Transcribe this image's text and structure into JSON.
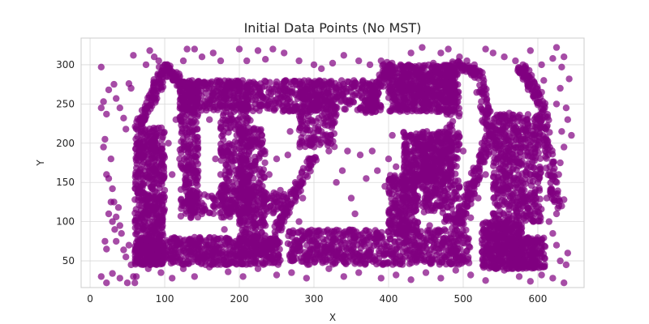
{
  "chart_data": {
    "type": "scatter",
    "title": "Initial Data Points (No MST)",
    "xlabel": "X",
    "ylabel": "Y",
    "xlim": [
      -12,
      662
    ],
    "ylim": [
      16,
      334
    ],
    "xticks": [
      0,
      100,
      200,
      300,
      400,
      500,
      600
    ],
    "yticks": [
      50,
      100,
      150,
      200,
      250,
      300
    ],
    "grid": true,
    "legend": "none",
    "marker_color": "#800080",
    "marker_opacity": 0.7,
    "description_note": "Dense point clusters forming letter-like shapes plus sparse scattered noise",
    "series": [
      {
        "points": [
          [
            15,
            297
          ],
          [
            15,
            245
          ],
          [
            18,
            253
          ],
          [
            22,
            237
          ],
          [
            25,
            268
          ],
          [
            32,
            275
          ],
          [
            35,
            257
          ],
          [
            40,
            245
          ],
          [
            45,
            232
          ],
          [
            48,
            218
          ],
          [
            52,
            276
          ],
          [
            55,
            270
          ],
          [
            58,
            312
          ],
          [
            62,
            220
          ],
          [
            70,
            225
          ],
          [
            75,
            300
          ],
          [
            80,
            318
          ],
          [
            86,
            310
          ],
          [
            92,
            305
          ],
          [
            100,
            300
          ],
          [
            108,
            290
          ],
          [
            115,
            285
          ],
          [
            120,
            275
          ],
          [
            125,
            305
          ],
          [
            130,
            320
          ],
          [
            140,
            320
          ],
          [
            150,
            310
          ],
          [
            165,
            315
          ],
          [
            175,
            305
          ],
          [
            200,
            320
          ],
          [
            210,
            305
          ],
          [
            225,
            318
          ],
          [
            235,
            307
          ],
          [
            245,
            320
          ],
          [
            260,
            315
          ],
          [
            280,
            305
          ],
          [
            300,
            300
          ],
          [
            310,
            295
          ],
          [
            325,
            302
          ],
          [
            340,
            312
          ],
          [
            360,
            305
          ],
          [
            375,
            300
          ],
          [
            390,
            305
          ],
          [
            420,
            295
          ],
          [
            430,
            315
          ],
          [
            445,
            322
          ],
          [
            460,
            302
          ],
          [
            470,
            315
          ],
          [
            480,
            320
          ],
          [
            495,
            310
          ],
          [
            505,
            305
          ],
          [
            515,
            300
          ],
          [
            530,
            320
          ],
          [
            540,
            315
          ],
          [
            555,
            310
          ],
          [
            570,
            305
          ],
          [
            580,
            300
          ],
          [
            590,
            318
          ],
          [
            605,
            300
          ],
          [
            620,
            308
          ],
          [
            625,
            322
          ],
          [
            632,
            297
          ],
          [
            635,
            310
          ],
          [
            18,
            195
          ],
          [
            20,
            205
          ],
          [
            22,
            160
          ],
          [
            25,
            155
          ],
          [
            28,
            180
          ],
          [
            30,
            142
          ],
          [
            32,
            125
          ],
          [
            35,
            106
          ],
          [
            38,
            118
          ],
          [
            40,
            95
          ],
          [
            42,
            85
          ],
          [
            45,
            64
          ],
          [
            48,
            55
          ],
          [
            52,
            70
          ],
          [
            55,
            45
          ],
          [
            58,
            30
          ],
          [
            60,
            22
          ],
          [
            20,
            75
          ],
          [
            22,
            65
          ],
          [
            25,
            110
          ],
          [
            28,
            125
          ],
          [
            30,
            100
          ],
          [
            33,
            90
          ],
          [
            35,
            75
          ],
          [
            15,
            30
          ],
          [
            22,
            22
          ],
          [
            30,
            34
          ],
          [
            40,
            28
          ],
          [
            50,
            22
          ],
          [
            62,
            30
          ],
          [
            78,
            40
          ],
          [
            95,
            35
          ],
          [
            110,
            28
          ],
          [
            125,
            40
          ],
          [
            140,
            30
          ],
          [
            160,
            42
          ],
          [
            185,
            36
          ],
          [
            205,
            30
          ],
          [
            225,
            40
          ],
          [
            250,
            32
          ],
          [
            270,
            35
          ],
          [
            290,
            28
          ],
          [
            320,
            40
          ],
          [
            340,
            30
          ],
          [
            360,
            35
          ],
          [
            390,
            28
          ],
          [
            410,
            32
          ],
          [
            430,
            26
          ],
          [
            450,
            35
          ],
          [
            470,
            28
          ],
          [
            490,
            38
          ],
          [
            510,
            32
          ],
          [
            530,
            25
          ],
          [
            555,
            38
          ],
          [
            575,
            30
          ],
          [
            590,
            24
          ],
          [
            605,
            32
          ],
          [
            620,
            28
          ],
          [
            635,
            22
          ],
          [
            640,
            60
          ],
          [
            638,
            45
          ],
          [
            630,
            50
          ],
          [
            625,
            70
          ],
          [
            620,
            85
          ],
          [
            615,
            100
          ],
          [
            625,
            110
          ],
          [
            632,
            120
          ],
          [
            635,
            128
          ],
          [
            630,
            175
          ],
          [
            628,
            160
          ],
          [
            635,
            195
          ],
          [
            632,
            215
          ],
          [
            640,
            230
          ],
          [
            638,
            245
          ],
          [
            625,
            250
          ],
          [
            630,
            270
          ],
          [
            642,
            282
          ],
          [
            645,
            210
          ],
          [
            618,
            140
          ],
          [
            612,
            130
          ],
          [
            600,
            150
          ],
          [
            590,
            160
          ],
          [
            600,
            195
          ],
          [
            590,
            210
          ],
          [
            585,
            230
          ],
          [
            598,
            270
          ],
          [
            608,
            280
          ],
          [
            100,
            140
          ],
          [
            105,
            200
          ],
          [
            110,
            160
          ],
          [
            115,
            230
          ],
          [
            120,
            180
          ],
          [
            128,
            260
          ],
          [
            135,
            105
          ],
          [
            140,
            80
          ],
          [
            145,
            75
          ],
          [
            150,
            110
          ],
          [
            155,
            250
          ],
          [
            160,
            230
          ],
          [
            165,
            120
          ],
          [
            168,
            180
          ],
          [
            175,
            160
          ],
          [
            180,
            90
          ],
          [
            182,
            140
          ],
          [
            185,
            190
          ],
          [
            190,
            150
          ],
          [
            195,
            75
          ],
          [
            210,
            185
          ],
          [
            215,
            115
          ],
          [
            220,
            145
          ],
          [
            225,
            120
          ],
          [
            230,
            200
          ],
          [
            235,
            95
          ],
          [
            240,
            160
          ],
          [
            250,
            180
          ],
          [
            255,
            140
          ],
          [
            260,
            100
          ],
          [
            265,
            185
          ],
          [
            268,
            215
          ],
          [
            275,
            150
          ],
          [
            280,
            100
          ],
          [
            285,
            130
          ],
          [
            290,
            200
          ],
          [
            295,
            180
          ],
          [
            305,
            250
          ],
          [
            310,
            215
          ],
          [
            315,
            260
          ],
          [
            320,
            190
          ],
          [
            330,
            150
          ],
          [
            338,
            165
          ],
          [
            345,
            190
          ],
          [
            350,
            130
          ],
          [
            355,
            110
          ],
          [
            362,
            185
          ],
          [
            370,
            155
          ],
          [
            378,
            190
          ],
          [
            385,
            165
          ],
          [
            395,
            145
          ],
          [
            400,
            180
          ],
          [
            405,
            210
          ],
          [
            410,
            170
          ],
          [
            420,
            130
          ],
          [
            428,
            110
          ],
          [
            435,
            150
          ],
          [
            445,
            180
          ],
          [
            450,
            120
          ],
          [
            455,
            95
          ],
          [
            462,
            135
          ],
          [
            468,
            180
          ],
          [
            475,
            100
          ],
          [
            480,
            205
          ],
          [
            485,
            130
          ],
          [
            490,
            95
          ],
          [
            495,
            145
          ],
          [
            500,
            190
          ],
          [
            505,
            120
          ],
          [
            510,
            105
          ],
          [
            520,
            130
          ],
          [
            525,
            200
          ],
          [
            530,
            160
          ],
          [
            535,
            90
          ]
        ]
      }
    ],
    "clusters": [
      {
        "kind": "rect",
        "x": [
          60,
          100
        ],
        "y": [
          45,
          220
        ],
        "n": 520
      },
      {
        "kind": "rect",
        "x": [
          60,
          255
        ],
        "y": [
          45,
          80
        ],
        "n": 560
      },
      {
        "kind": "rect",
        "x": [
          120,
          145
        ],
        "y": [
          105,
          280
        ],
        "n": 260
      },
      {
        "kind": "rect",
        "x": [
          120,
          390
        ],
        "y": [
          240,
          280
        ],
        "n": 580
      },
      {
        "kind": "rect",
        "x": [
          175,
          215
        ],
        "y": [
          105,
          280
        ],
        "n": 300
      },
      {
        "kind": "rect",
        "x": [
          280,
          330
        ],
        "y": [
          195,
          280
        ],
        "n": 200
      },
      {
        "kind": "rect",
        "x": [
          130,
          265
        ],
        "y": [
          110,
          140
        ],
        "n": 160
      },
      {
        "kind": "rect",
        "x": [
          200,
          235
        ],
        "y": [
          60,
          220
        ],
        "n": 280
      },
      {
        "kind": "rect",
        "x": [
          265,
          510
        ],
        "y": [
          45,
          90
        ],
        "n": 640
      },
      {
        "kind": "rect",
        "x": [
          400,
          490
        ],
        "y": [
          240,
          300
        ],
        "n": 560
      },
      {
        "kind": "rect",
        "x": [
          475,
          495
        ],
        "y": [
          100,
          300
        ],
        "n": 160
      },
      {
        "kind": "rect",
        "x": [
          420,
          485
        ],
        "y": [
          150,
          215
        ],
        "n": 300
      },
      {
        "kind": "rect",
        "x": [
          400,
          440
        ],
        "y": [
          85,
          160
        ],
        "n": 230
      },
      {
        "kind": "rect",
        "x": [
          445,
          475
        ],
        "y": [
          110,
          200
        ],
        "n": 180
      },
      {
        "kind": "rect",
        "x": [
          525,
          580
        ],
        "y": [
          40,
          100
        ],
        "n": 340
      },
      {
        "kind": "rect",
        "x": [
          540,
          605
        ],
        "y": [
          100,
          240
        ],
        "n": 480
      },
      {
        "kind": "rect",
        "x": [
          560,
          610
        ],
        "y": [
          40,
          80
        ],
        "n": 200
      },
      {
        "kind": "line",
        "from": [
          65,
          220
        ],
        "to": [
          100,
          295
        ],
        "w": 6,
        "n": 90
      },
      {
        "kind": "line",
        "from": [
          100,
          295
        ],
        "to": [
          135,
          265
        ],
        "w": 6,
        "n": 70
      },
      {
        "kind": "line",
        "from": [
          370,
          240
        ],
        "to": [
          400,
          300
        ],
        "w": 6,
        "n": 80
      },
      {
        "kind": "line",
        "from": [
          490,
          300
        ],
        "to": [
          520,
          290
        ],
        "w": 5,
        "n": 40
      },
      {
        "kind": "line",
        "from": [
          520,
          290
        ],
        "to": [
          540,
          200
        ],
        "w": 7,
        "n": 80
      },
      {
        "kind": "line",
        "from": [
          535,
          205
        ],
        "to": [
          490,
          90
        ],
        "w": 6,
        "n": 120
      },
      {
        "kind": "line",
        "from": [
          235,
          60
        ],
        "to": [
          265,
          120
        ],
        "w": 5,
        "n": 60
      },
      {
        "kind": "line",
        "from": [
          265,
          120
        ],
        "to": [
          300,
          185
        ],
        "w": 5,
        "n": 60
      },
      {
        "kind": "line",
        "from": [
          575,
          300
        ],
        "to": [
          605,
          250
        ],
        "w": 6,
        "n": 70
      },
      {
        "kind": "line",
        "from": [
          605,
          250
        ],
        "to": [
          625,
          120
        ],
        "w": 6,
        "n": 90
      }
    ]
  }
}
